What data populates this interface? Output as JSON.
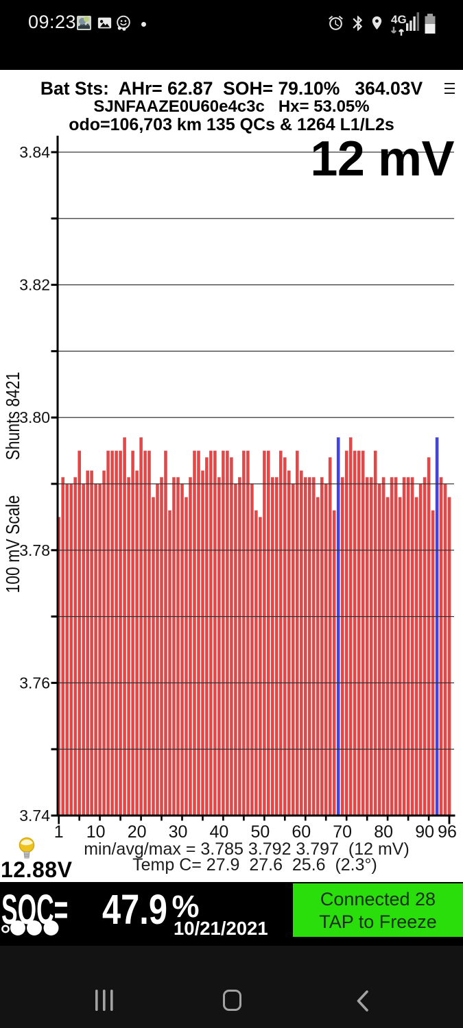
{
  "status_bar": {
    "time": "09:23",
    "left_icons": [
      "screenshot-thumbnail",
      "gallery",
      "waze-smiley",
      "more-notifications-dot"
    ],
    "network_label": "4G",
    "right_icons": [
      "alarm",
      "bluetooth",
      "location",
      "4g-updown",
      "signal-strength",
      "battery"
    ]
  },
  "header": {
    "line1": "Bat Sts:  AHr= 62.87  SOH= 79.10%   364.03V",
    "line2": "SJNFAAZE0U60e4c3c   Hx= 53.05%",
    "line3": "odo=106,703 km 135 QCs & 1264 L1/L2s"
  },
  "chart": {
    "big_value_label": "12 mV",
    "y_axis_scale_label": "100 mV Scale",
    "shunts_label": "Shunts 8421"
  },
  "chart_data": {
    "type": "bar",
    "title": "",
    "xlabel": "",
    "ylabel": "100 mV Scale  Shunts 8421",
    "cells": 96,
    "ylim": [
      3.74,
      3.84
    ],
    "grid_step": 0.01,
    "y_label_step": 0.02,
    "y_tick_labels": [
      "3.74",
      "3.76",
      "3.78",
      "3.80",
      "3.82",
      "3.84"
    ],
    "x_tick_labels": [
      1,
      10,
      20,
      30,
      40,
      50,
      60,
      70,
      80,
      90,
      96
    ],
    "minor_tick_step": 5,
    "grid_on": true,
    "bar_color": "#e84646",
    "shunt_color": "#4342e2",
    "shunt_cells": [
      69,
      93
    ],
    "values": [
      3.785,
      3.791,
      3.79,
      3.79,
      3.791,
      3.795,
      3.79,
      3.792,
      3.792,
      3.79,
      3.79,
      3.792,
      3.795,
      3.795,
      3.795,
      3.795,
      3.797,
      3.791,
      3.795,
      3.792,
      3.797,
      3.795,
      3.795,
      3.788,
      3.79,
      3.791,
      3.795,
      3.786,
      3.791,
      3.791,
      3.79,
      3.788,
      3.791,
      3.795,
      3.795,
      3.792,
      3.794,
      3.795,
      3.795,
      3.791,
      3.795,
      3.795,
      3.794,
      3.79,
      3.791,
      3.795,
      3.795,
      3.79,
      3.786,
      3.785,
      3.795,
      3.795,
      3.791,
      3.791,
      3.795,
      3.794,
      3.792,
      3.79,
      3.795,
      3.792,
      3.791,
      3.791,
      3.791,
      3.788,
      3.791,
      3.79,
      3.794,
      3.786,
      3.797,
      3.791,
      3.795,
      3.797,
      3.795,
      3.795,
      3.795,
      3.791,
      3.791,
      3.795,
      3.79,
      3.791,
      3.788,
      3.791,
      3.791,
      3.788,
      3.791,
      3.791,
      3.791,
      3.788,
      3.79,
      3.791,
      3.794,
      3.786,
      3.797,
      3.791,
      3.79,
      3.788
    ]
  },
  "footer": {
    "stats_line": "min/avg/max = 3.785 3.792 3.797  (12 mV)",
    "temp_line": "Temp C= 27.9  27.6  25.6  (2.3°)",
    "aux_battery": "12.88V"
  },
  "soc_bar": {
    "soc_prefix": "SOC= ",
    "soc_value": "47.9",
    "soc_percent": "%",
    "date": "10/21/2021",
    "button": {
      "line1": "Connected 28",
      "line2": "TAP to Freeze",
      "color": "#2ade0b"
    }
  },
  "nav_bar": {
    "icons": [
      "recent-apps",
      "home",
      "back"
    ]
  }
}
